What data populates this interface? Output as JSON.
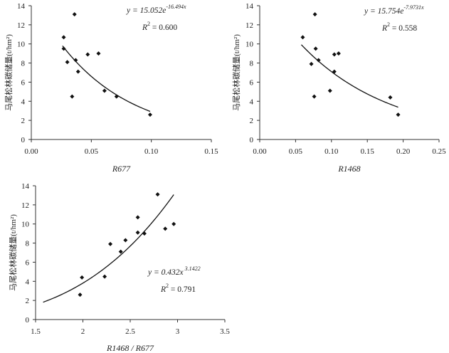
{
  "chart_data": [
    {
      "type": "scatter",
      "xlabel": "R677",
      "ylabel": "马尾松林碳储量(t/hm²)",
      "xlim": [
        0,
        0.15
      ],
      "ylim": [
        0,
        14
      ],
      "xticks": [
        "0.00",
        "0.05",
        "0.10",
        "0.15"
      ],
      "yticks": [
        "0",
        "2",
        "4",
        "6",
        "8",
        "10",
        "12",
        "14"
      ],
      "points": [
        {
          "x": 0.027,
          "y": 10.7
        },
        {
          "x": 0.027,
          "y": 9.5
        },
        {
          "x": 0.03,
          "y": 8.1
        },
        {
          "x": 0.034,
          "y": 4.5
        },
        {
          "x": 0.036,
          "y": 13.1
        },
        {
          "x": 0.037,
          "y": 8.3
        },
        {
          "x": 0.039,
          "y": 7.1
        },
        {
          "x": 0.047,
          "y": 8.9
        },
        {
          "x": 0.056,
          "y": 9.0
        },
        {
          "x": 0.061,
          "y": 5.1
        },
        {
          "x": 0.071,
          "y": 4.5
        },
        {
          "x": 0.099,
          "y": 2.6
        }
      ],
      "fit": {
        "model": "exponential",
        "a": 15.052,
        "b": -16.494,
        "from": 0.026,
        "to": 0.099
      },
      "equation": {
        "prefix": "y = 15.052e",
        "sup": "-16.494x"
      },
      "r2": {
        "label": "R",
        "text": " = 0.600"
      }
    },
    {
      "type": "scatter",
      "xlabel": "R1468",
      "ylabel": "马尾松林碳储量(t/hm²)",
      "xlim": [
        0,
        0.25
      ],
      "ylim": [
        0,
        14
      ],
      "xticks": [
        "0.00",
        "0.05",
        "0.10",
        "0.15",
        "0.20",
        "0.25"
      ],
      "yticks": [
        "0",
        "2",
        "4",
        "6",
        "8",
        "10",
        "12",
        "14"
      ],
      "points": [
        {
          "x": 0.06,
          "y": 10.7
        },
        {
          "x": 0.072,
          "y": 7.9
        },
        {
          "x": 0.076,
          "y": 4.5
        },
        {
          "x": 0.077,
          "y": 13.1
        },
        {
          "x": 0.078,
          "y": 9.5
        },
        {
          "x": 0.082,
          "y": 8.3
        },
        {
          "x": 0.098,
          "y": 5.1
        },
        {
          "x": 0.104,
          "y": 7.1
        },
        {
          "x": 0.104,
          "y": 8.9
        },
        {
          "x": 0.11,
          "y": 9.0
        },
        {
          "x": 0.182,
          "y": 4.4
        },
        {
          "x": 0.193,
          "y": 2.6
        }
      ],
      "fit": {
        "model": "exponential",
        "a": 15.754,
        "b": -7.9731,
        "from": 0.058,
        "to": 0.193
      },
      "equation": {
        "prefix": "y = 15.754e",
        "sup": "-7.9731x"
      },
      "r2": {
        "label": "R",
        "text": " = 0.558"
      }
    },
    {
      "type": "scatter",
      "xlabel": "R1468 / R677",
      "ylabel": "马尾松林碳储量(t/hm²)",
      "xlim": [
        1.5,
        3.5
      ],
      "ylim": [
        0,
        14
      ],
      "xticks": [
        "1.5",
        "2",
        "2.5",
        "3",
        "3.5"
      ],
      "yticks": [
        "0",
        "2",
        "4",
        "6",
        "8",
        "10",
        "12",
        "14"
      ],
      "points": [
        {
          "x": 1.97,
          "y": 2.6
        },
        {
          "x": 1.99,
          "y": 4.4
        },
        {
          "x": 2.23,
          "y": 4.5
        },
        {
          "x": 2.29,
          "y": 7.9
        },
        {
          "x": 2.4,
          "y": 7.1
        },
        {
          "x": 2.45,
          "y": 8.3
        },
        {
          "x": 2.58,
          "y": 9.1
        },
        {
          "x": 2.58,
          "y": 10.7
        },
        {
          "x": 2.65,
          "y": 9.0
        },
        {
          "x": 2.79,
          "y": 13.1
        },
        {
          "x": 2.87,
          "y": 9.5
        },
        {
          "x": 2.96,
          "y": 10.0
        }
      ],
      "fit": {
        "model": "power",
        "a": 0.432,
        "b": 3.1422,
        "from": 1.58,
        "to": 2.96
      },
      "equation": {
        "prefix": "y = 0.432x",
        "sup": " 3.1422"
      },
      "r2": {
        "label": "R",
        "text": " = 0.791"
      }
    }
  ]
}
